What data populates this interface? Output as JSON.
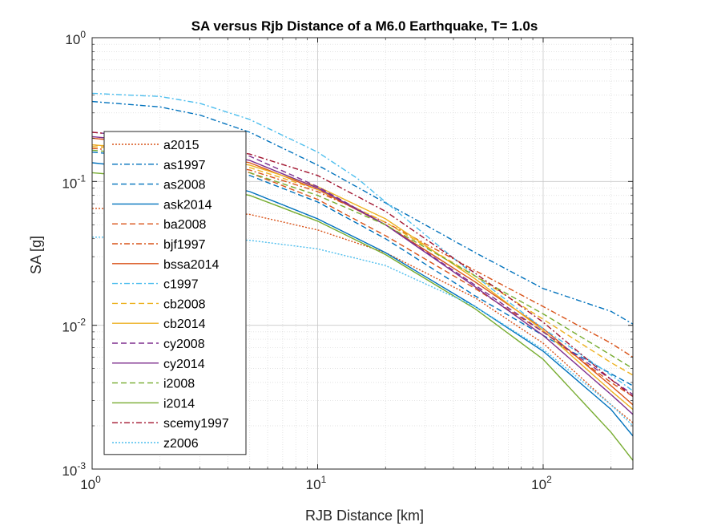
{
  "chart_data": {
    "type": "line",
    "title": "SA versus Rjb Distance of a M6.0 Earthquake, T= 1.0s",
    "xlabel": "RJB Distance [km]",
    "ylabel": "SA [g]",
    "xscale": "log",
    "yscale": "log",
    "xlim": [
      1,
      250
    ],
    "ylim": [
      0.001,
      1
    ],
    "grid": true,
    "minor_grid": true,
    "legend_location": "left",
    "x_ticks": [
      {
        "base": "10",
        "exp": "0",
        "value": 1
      },
      {
        "base": "10",
        "exp": "1",
        "value": 10
      },
      {
        "base": "10",
        "exp": "2",
        "value": 100
      }
    ],
    "y_ticks": [
      {
        "base": "10",
        "exp": "-3",
        "value": 0.001
      },
      {
        "base": "10",
        "exp": "-2",
        "value": 0.01
      },
      {
        "base": "10",
        "exp": "-1",
        "value": 0.1
      },
      {
        "base": "10",
        "exp": "0",
        "value": 1
      }
    ],
    "series": [
      {
        "name": "a2015",
        "color": "#D95319",
        "dash": "dotted",
        "x": [
          1,
          2,
          5,
          10,
          20,
          50,
          100,
          200,
          250
        ],
        "y": [
          0.065,
          0.064,
          0.059,
          0.046,
          0.032,
          0.0155,
          0.0075,
          0.0028,
          0.0021
        ]
      },
      {
        "name": "as1997",
        "color": "#0072BD",
        "dash": "dashdot",
        "x": [
          1,
          2,
          3,
          5,
          10,
          20,
          50,
          100,
          200,
          250
        ],
        "y": [
          0.36,
          0.33,
          0.29,
          0.22,
          0.13,
          0.071,
          0.032,
          0.018,
          0.0125,
          0.0102
        ]
      },
      {
        "name": "as2008",
        "color": "#0072BD",
        "dash": "dashed",
        "x": [
          1,
          2,
          5,
          10,
          20,
          50,
          100,
          200,
          250
        ],
        "y": [
          0.16,
          0.145,
          0.11,
          0.072,
          0.04,
          0.016,
          0.0085,
          0.0046,
          0.0038
        ]
      },
      {
        "name": "ask2014",
        "color": "#0072BD",
        "dash": "solid",
        "x": [
          1,
          2,
          5,
          10,
          20,
          50,
          100,
          200,
          250
        ],
        "y": [
          0.135,
          0.12,
          0.085,
          0.055,
          0.032,
          0.0135,
          0.0066,
          0.0026,
          0.0017
        ]
      },
      {
        "name": "ba2008",
        "color": "#D95319",
        "dash": "dashed",
        "x": [
          1,
          2,
          5,
          10,
          20,
          50,
          100,
          200,
          250
        ],
        "y": [
          0.18,
          0.16,
          0.115,
          0.075,
          0.042,
          0.018,
          0.009,
          0.004,
          0.0032
        ]
      },
      {
        "name": "bjf1997",
        "color": "#D95319",
        "dash": "dashdot",
        "x": [
          1,
          2,
          5,
          10,
          20,
          50,
          100,
          200,
          250
        ],
        "y": [
          0.17,
          0.155,
          0.12,
          0.085,
          0.052,
          0.024,
          0.0135,
          0.0075,
          0.006
        ]
      },
      {
        "name": "bssa2014",
        "color": "#D95319",
        "dash": "solid",
        "x": [
          1,
          2,
          5,
          10,
          20,
          50,
          100,
          200,
          250
        ],
        "y": [
          0.2,
          0.18,
          0.135,
          0.088,
          0.05,
          0.02,
          0.0095,
          0.0038,
          0.0028
        ]
      },
      {
        "name": "c1997",
        "color": "#4DBEEE",
        "dash": "dashdot",
        "x": [
          1,
          2,
          3,
          5,
          10,
          15,
          20,
          50,
          100,
          200,
          250
        ],
        "y": [
          0.41,
          0.39,
          0.35,
          0.27,
          0.16,
          0.105,
          0.072,
          0.022,
          0.0095,
          0.0045,
          0.0035
        ]
      },
      {
        "name": "cb2008",
        "color": "#EDB120",
        "dash": "dashed",
        "x": [
          1,
          2,
          5,
          10,
          20,
          50,
          100,
          200,
          250
        ],
        "y": [
          0.175,
          0.16,
          0.125,
          0.088,
          0.052,
          0.022,
          0.011,
          0.0055,
          0.0045
        ]
      },
      {
        "name": "cb2014",
        "color": "#EDB120",
        "dash": "solid",
        "x": [
          1,
          2,
          5,
          10,
          20,
          50,
          100,
          200,
          250
        ],
        "y": [
          0.18,
          0.165,
          0.13,
          0.092,
          0.055,
          0.021,
          0.0092,
          0.0035,
          0.0026
        ]
      },
      {
        "name": "cy2008",
        "color": "#7E2F8E",
        "dash": "dashed",
        "x": [
          1,
          2,
          5,
          10,
          20,
          50,
          100,
          200,
          250
        ],
        "y": [
          0.22,
          0.2,
          0.15,
          0.092,
          0.05,
          0.019,
          0.009,
          0.0042,
          0.0033
        ]
      },
      {
        "name": "cy2014",
        "color": "#7E2F8E",
        "dash": "solid",
        "x": [
          1,
          2,
          5,
          10,
          20,
          50,
          100,
          200,
          250
        ],
        "y": [
          0.205,
          0.185,
          0.14,
          0.09,
          0.05,
          0.0185,
          0.0085,
          0.0033,
          0.0024
        ]
      },
      {
        "name": "i2008",
        "color": "#77AC30",
        "dash": "dashed",
        "x": [
          1,
          2,
          5,
          10,
          20,
          50,
          100,
          200,
          250
        ],
        "y": [
          0.165,
          0.15,
          0.115,
          0.08,
          0.05,
          0.022,
          0.012,
          0.0062,
          0.005
        ]
      },
      {
        "name": "i2014",
        "color": "#77AC30",
        "dash": "solid",
        "x": [
          1,
          2,
          5,
          10,
          20,
          50,
          100,
          200,
          250
        ],
        "y": [
          0.115,
          0.105,
          0.08,
          0.053,
          0.031,
          0.013,
          0.0058,
          0.0018,
          0.00115
        ]
      },
      {
        "name": "scemy1997",
        "color": "#A2142F",
        "dash": "dashdot",
        "x": [
          1,
          2,
          5,
          10,
          20,
          50,
          100,
          200,
          250
        ],
        "y": [
          0.22,
          0.2,
          0.155,
          0.11,
          0.062,
          0.023,
          0.0105,
          0.0042,
          0.0032
        ]
      },
      {
        "name": "z2006",
        "color": "#4DBEEE",
        "dash": "dotted",
        "x": [
          1,
          2,
          5,
          10,
          20,
          50,
          100,
          200,
          250
        ],
        "y": [
          0.041,
          0.041,
          0.039,
          0.034,
          0.026,
          0.0135,
          0.0068,
          0.0028,
          0.002
        ]
      }
    ]
  }
}
